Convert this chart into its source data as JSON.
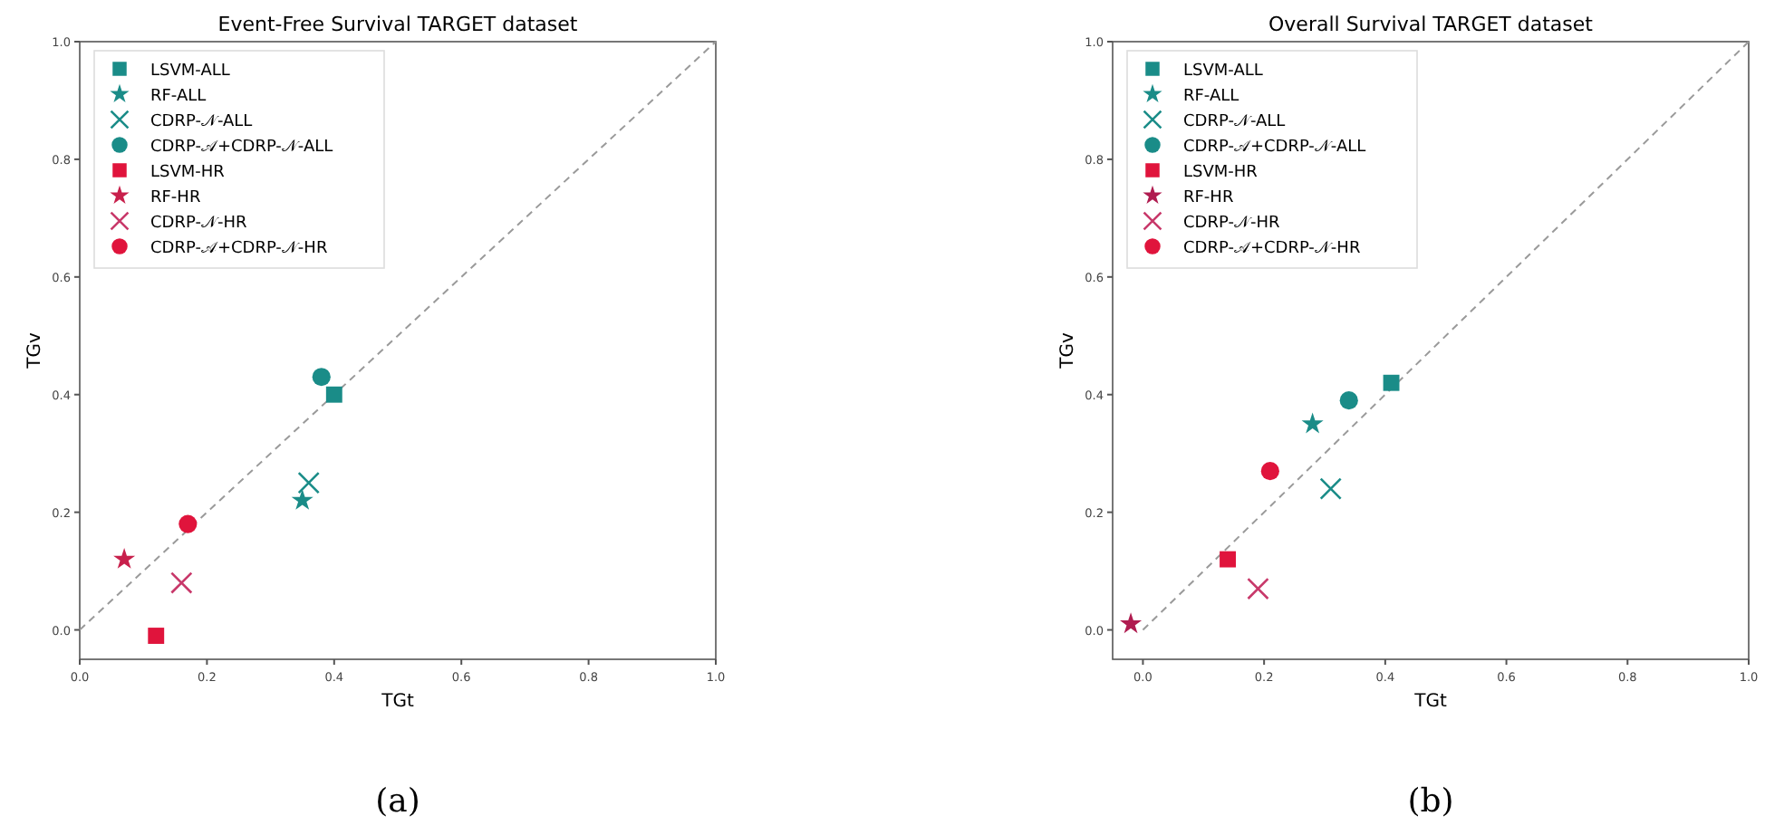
{
  "chart_data": [
    {
      "type": "scatter",
      "title": "Event-Free Survival TARGET dataset",
      "xlabel": "TGt",
      "ylabel": "TGv",
      "annotations": [
        "(a)"
      ],
      "xlim": [
        0,
        1
      ],
      "ylim": [
        -0.05,
        1
      ],
      "xticks": [
        {
          "value": 0,
          "label": "0.0"
        },
        {
          "value": 0.2,
          "label": "0.2"
        },
        {
          "value": 0.4,
          "label": "0.4"
        },
        {
          "value": 0.6,
          "label": "0.6"
        },
        {
          "value": 0.8,
          "label": "0.8"
        },
        {
          "value": 1,
          "label": "1.0"
        }
      ],
      "yticks": [
        {
          "value": 0,
          "label": "0.0"
        },
        {
          "value": 0.2,
          "label": "0.2"
        },
        {
          "value": 0.4,
          "label": "0.4"
        },
        {
          "value": 0.6,
          "label": "0.6"
        },
        {
          "value": 0.8,
          "label": "0.8"
        },
        {
          "value": 1,
          "label": "1.0"
        }
      ],
      "grid": false,
      "legend": "top left",
      "series": [
        {
          "type": "line",
          "x": [
            0,
            1
          ],
          "values": [
            0,
            1
          ],
          "color": "#9a9a9a",
          "line_style": "dashed",
          "marker": "none"
        },
        {
          "name": "LSVM-ALL",
          "x": [
            0.4
          ],
          "values": [
            0.4
          ],
          "color": "#1a8c88",
          "marker": "square"
        },
        {
          "name": "RF-ALL",
          "x": [
            0.35
          ],
          "values": [
            0.22
          ],
          "color": "#1a8c88",
          "marker": "star"
        },
        {
          "name": "CDRP-𝒩-ALL",
          "x": [
            0.36
          ],
          "values": [
            0.25
          ],
          "color": "#1a8c88",
          "marker": "cross"
        },
        {
          "name": "CDRP-𝒜+CDRP-𝒩-ALL",
          "x": [
            0.38
          ],
          "values": [
            0.43
          ],
          "color": "#1a8c88",
          "marker": "circle"
        },
        {
          "name": "LSVM-HR",
          "x": [
            0.12
          ],
          "values": [
            -0.01
          ],
          "color": "#e0143c",
          "marker": "square"
        },
        {
          "name": "RF-HR",
          "x": [
            0.07
          ],
          "values": [
            0.12
          ],
          "color": "#c8204c",
          "marker": "star"
        },
        {
          "name": "CDRP-𝒩-HR",
          "x": [
            0.16
          ],
          "values": [
            0.08
          ],
          "color": "#c8386a",
          "marker": "cross"
        },
        {
          "name": "CDRP-𝒜+CDRP-𝒩-HR",
          "x": [
            0.17
          ],
          "values": [
            0.18
          ],
          "color": "#e0143c",
          "marker": "circle"
        }
      ]
    },
    {
      "type": "scatter",
      "title": "Overall Survival TARGET dataset",
      "xlabel": "TGt",
      "ylabel": "TGv",
      "annotations": [
        "(b)"
      ],
      "xlim": [
        -0.05,
        1
      ],
      "ylim": [
        -0.05,
        1
      ],
      "xticks": [
        {
          "value": 0,
          "label": "0.0"
        },
        {
          "value": 0.2,
          "label": "0.2"
        },
        {
          "value": 0.4,
          "label": "0.4"
        },
        {
          "value": 0.6,
          "label": "0.6"
        },
        {
          "value": 0.8,
          "label": "0.8"
        },
        {
          "value": 1,
          "label": "1.0"
        }
      ],
      "yticks": [
        {
          "value": 0,
          "label": "0.0"
        },
        {
          "value": 0.2,
          "label": "0.2"
        },
        {
          "value": 0.4,
          "label": "0.4"
        },
        {
          "value": 0.6,
          "label": "0.6"
        },
        {
          "value": 0.8,
          "label": "0.8"
        },
        {
          "value": 1,
          "label": "1.0"
        }
      ],
      "grid": false,
      "legend": "top left",
      "series": [
        {
          "type": "line",
          "x": [
            0,
            1
          ],
          "values": [
            0,
            1
          ],
          "color": "#9a9a9a",
          "line_style": "dashed",
          "marker": "none"
        },
        {
          "name": "LSVM-ALL",
          "x": [
            0.41
          ],
          "values": [
            0.42
          ],
          "color": "#1a8c88",
          "marker": "square"
        },
        {
          "name": "RF-ALL",
          "x": [
            0.28
          ],
          "values": [
            0.35
          ],
          "color": "#1a8c88",
          "marker": "star"
        },
        {
          "name": "CDRP-𝒩-ALL",
          "x": [
            0.31
          ],
          "values": [
            0.24
          ],
          "color": "#1a8c88",
          "marker": "cross"
        },
        {
          "name": "CDRP-𝒜+CDRP-𝒩-ALL",
          "x": [
            0.34
          ],
          "values": [
            0.39
          ],
          "color": "#1a8c88",
          "marker": "circle"
        },
        {
          "name": "LSVM-HR",
          "x": [
            0.14
          ],
          "values": [
            0.12
          ],
          "color": "#e0143c",
          "marker": "square"
        },
        {
          "name": "RF-HR",
          "x": [
            -0.02
          ],
          "values": [
            0.01
          ],
          "color": "#b01c50",
          "marker": "star"
        },
        {
          "name": "CDRP-𝒩-HR",
          "x": [
            0.19
          ],
          "values": [
            0.07
          ],
          "color": "#c8386a",
          "marker": "cross"
        },
        {
          "name": "CDRP-𝒜+CDRP-𝒩-HR",
          "x": [
            0.21
          ],
          "values": [
            0.27
          ],
          "color": "#e0143c",
          "marker": "circle"
        }
      ]
    }
  ]
}
